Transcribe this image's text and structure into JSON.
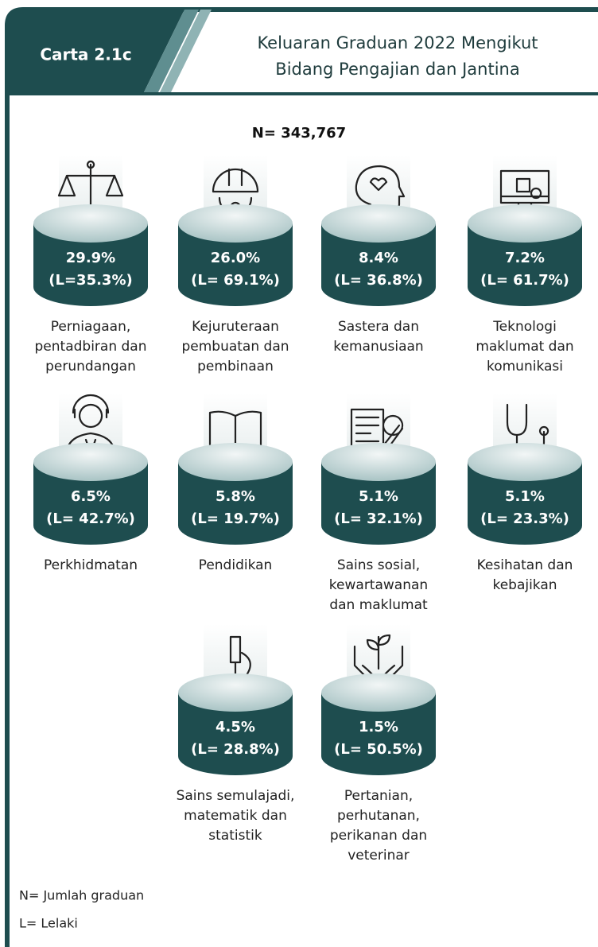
{
  "header": {
    "code": "Carta 2.1c",
    "title": [
      "Keluaran Graduan 2022 Mengikut",
      "Bidang Pengajian dan Jantina"
    ]
  },
  "total": "N= 343,767",
  "items": [
    {
      "share": "29.9%",
      "male": "(L=35.3%)",
      "label": [
        "Perniagaan,",
        "pentadbiran dan",
        "perundangan"
      ]
    },
    {
      "share": "26.0%",
      "male": "(L= 69.1%)",
      "label": [
        "Kejuruteraan",
        "pembuatan dan",
        "pembinaan"
      ]
    },
    {
      "share": "8.4%",
      "male": "(L= 36.8%)",
      "label": [
        "Sastera dan",
        "kemanusiaan"
      ]
    },
    {
      "share": "7.2%",
      "male": "(L= 61.7%)",
      "label": [
        "Teknologi",
        "maklumat dan",
        "komunikasi"
      ]
    },
    {
      "share": "6.5%",
      "male": "(L= 42.7%)",
      "label": [
        "Perkhidmatan"
      ]
    },
    {
      "share": "5.8%",
      "male": "(L= 19.7%)",
      "label": [
        "Pendidikan"
      ]
    },
    {
      "share": "5.1%",
      "male": "(L= 32.1%)",
      "label": [
        "Sains sosial,",
        "kewartawanan",
        "dan maklumat"
      ]
    },
    {
      "share": "5.1%",
      "male": "(L= 23.3%)",
      "label": [
        "Kesihatan dan",
        "kebajikan"
      ]
    },
    {
      "share": "4.5%",
      "male": "(L= 28.8%)",
      "label": [
        "Sains semulajadi,",
        "matematik dan",
        "statistik"
      ]
    },
    {
      "share": "1.5%",
      "male": "(L= 50.5%)",
      "label": [
        "Pertanian,",
        "perhutanan,",
        "perikanan dan",
        "veterinar"
      ]
    }
  ],
  "notes": [
    "N= Jumlah graduan",
    "L= Lelaki"
  ]
}
